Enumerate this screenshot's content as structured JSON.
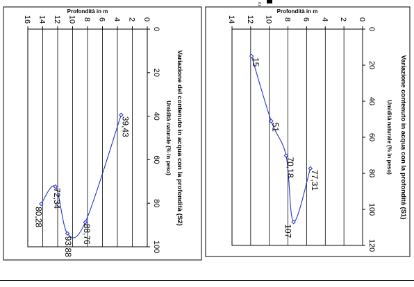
{
  "page": {
    "top_mark": "ns"
  },
  "charts": [
    {
      "id": "s1",
      "title": "Variazione contenuto in acqua con la profondità   (S1)",
      "x_axis_label": "Umidità naturale (% in peso)",
      "y_axis_label": "Profondità in m",
      "x_ticks": [
        "0",
        "20",
        "40",
        "60",
        "80",
        "100",
        "120"
      ],
      "y_ticks": [
        "0",
        "2",
        "4",
        "6",
        "8",
        "10",
        "12",
        "14"
      ]
    },
    {
      "id": "s2",
      "title": "Variazione del contenuto in acqua con la profondità (S2)",
      "x_axis_label": "Umidità naturale (% in peso)",
      "y_axis_label": "Profondità in m",
      "x_ticks": [
        "0",
        "20",
        "40",
        "60",
        "80",
        "100"
      ],
      "y_ticks": [
        "0",
        "2",
        "4",
        "6",
        "8",
        "10",
        "12",
        "14",
        "16"
      ]
    }
  ],
  "chart_data": [
    {
      "type": "line",
      "title": "Variazione contenuto in acqua con la profondità   (S1)",
      "xlabel": "Umidità naturale (% in peso)",
      "ylabel": "Profondità in m",
      "xlim": [
        0,
        120
      ],
      "ylim": [
        0,
        14
      ],
      "grid": true,
      "series": [
        {
          "color": "#2233cc",
          "points": [
            {
              "x": 15,
              "y": 11.9,
              "label": "15"
            },
            {
              "x": 51,
              "y": 9.8,
              "label": "51"
            },
            {
              "x": 70.18,
              "y": 8.2,
              "label": "70,18"
            },
            {
              "x": 107,
              "y": 7.4,
              "label": "107"
            },
            {
              "x": 77.31,
              "y": 5.6,
              "label": "77,31"
            }
          ]
        }
      ]
    },
    {
      "type": "line",
      "title": "Variazione del contenuto in acqua con la profondità (S2)",
      "xlabel": "Umidità naturale (% in peso)",
      "ylabel": "Profondità in m",
      "xlim": [
        0,
        100
      ],
      "ylim": [
        0,
        16
      ],
      "grid": true,
      "series": [
        {
          "color": "#2233cc",
          "points": [
            {
              "x": 39.43,
              "y": 3.5,
              "label": "39,43"
            },
            {
              "x": 88.76,
              "y": 8.3,
              "label": "88,76"
            },
            {
              "x": 93.88,
              "y": 10.7,
              "label": "93,88"
            },
            {
              "x": 72.34,
              "y": 12.3,
              "label": "72,34"
            },
            {
              "x": 80.28,
              "y": 14.2,
              "label": "80,28"
            }
          ]
        }
      ]
    }
  ]
}
